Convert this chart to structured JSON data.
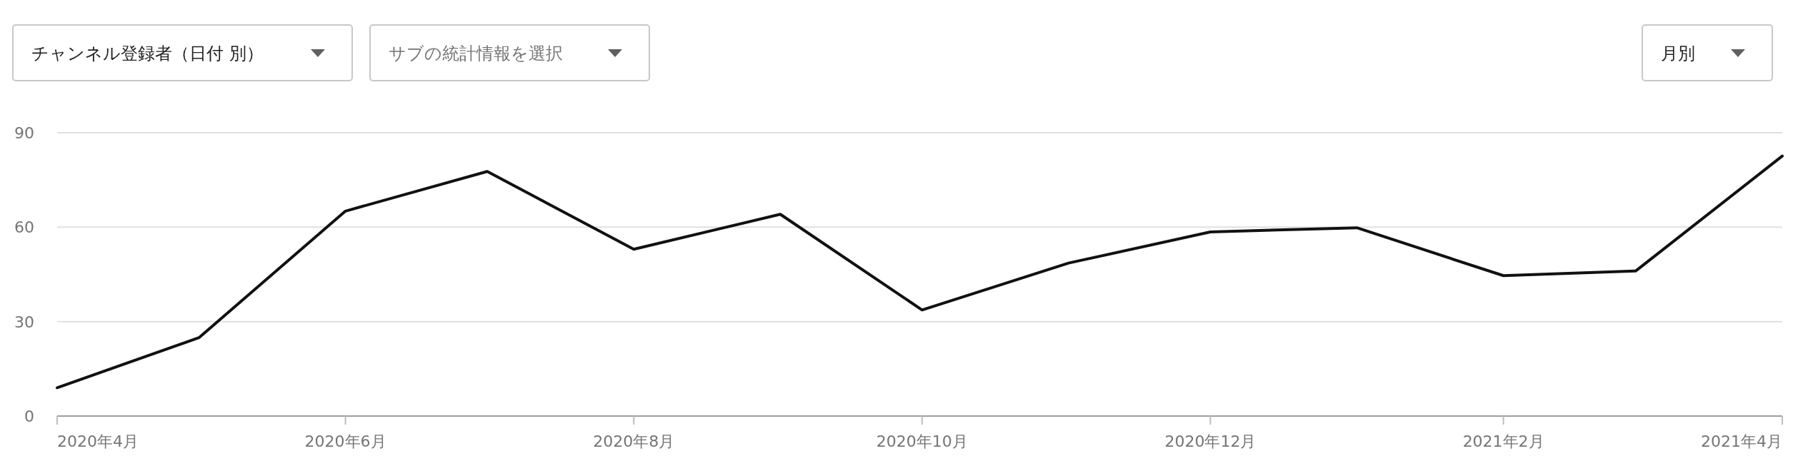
{
  "chart_data": {
    "type": "line",
    "annotations": [
      "チャンネル登録者（日付 別）",
      "サブの統計情報を選択",
      "月別"
    ],
    "x": [
      "2020-04",
      "2020-05",
      "2020-06",
      "2020-07",
      "2020-08",
      "2020-09",
      "2020-10",
      "2020-11",
      "2020-12",
      "2021-01",
      "2021-02",
      "2021-03",
      "2021-04"
    ],
    "series": [
      {
        "color": "#111111",
        "values": [
          9.0,
          24.9,
          65.1,
          77.7,
          53.0,
          64.1,
          33.7,
          48.6,
          58.5,
          59.8,
          44.6,
          46.1,
          82.6
        ]
      }
    ],
    "xlim": [
      "2020-04",
      "2021-04"
    ],
    "xticks": [
      {
        "value": "2020-04",
        "label": "2020年4月"
      },
      {
        "value": "2020-06",
        "label": "2020年6月"
      },
      {
        "value": "2020-08",
        "label": "2020年8月"
      },
      {
        "value": "2020-10",
        "label": "2020年10月"
      },
      {
        "value": "2020-12",
        "label": "2020年12月"
      },
      {
        "value": "2021-02",
        "label": "2021年2月"
      },
      {
        "value": "2021-04",
        "label": "2021年4月"
      }
    ],
    "ylim": [
      0,
      90
    ],
    "yticks": [
      0,
      30,
      60,
      90
    ],
    "grid": "y",
    "marker": "none",
    "line_style": "solid"
  }
}
